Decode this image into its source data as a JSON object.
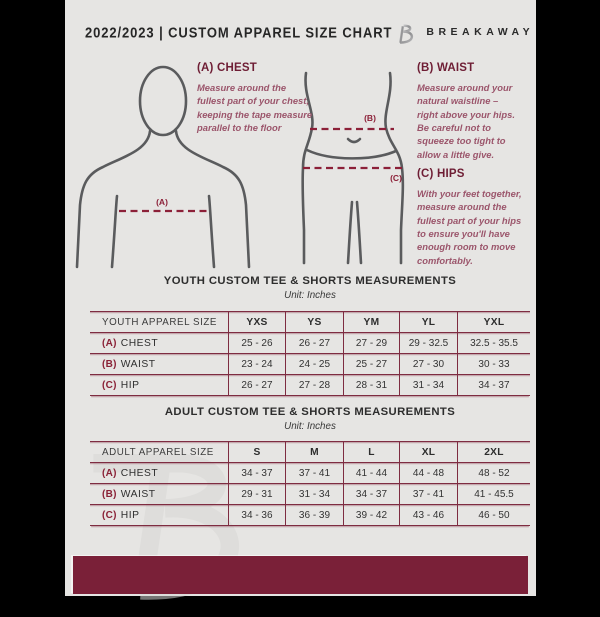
{
  "page": {
    "header": {
      "title": "2022/2023  |  CUSTOM APPAREL SIZE CHART",
      "brand": "BREAKAWAY",
      "logo": "breakaway-b-logo"
    },
    "measure_guide": {
      "chest_heading": "(A) CHEST",
      "chest_body": "Measure around the fullest part of your chest, keeping the tape measure parallel to the floor",
      "waist_heading": "(B) WAIST",
      "waist_body": "Measure around your natural waistline – right above your hips. Be careful not to squeeze too tight to allow a little give.",
      "hips_heading": "(C) HIPS",
      "hips_body": "With your feet together, measure around the fullest part of your hips to ensure you'll have enough room to move comfortably.",
      "marker_a": "(A)",
      "marker_b": "(B)",
      "marker_c": "(C)"
    },
    "youth_section": {
      "title": "YOUTH CUSTOM TEE & SHORTS MEASUREMENTS",
      "unit": "Unit: Inches",
      "table": {
        "header": [
          "YOUTH APPAREL SIZE",
          "YXS",
          "YS",
          "YM",
          "YL",
          "YXL"
        ],
        "rows": [
          {
            "prefix": "(A)",
            "label": "CHEST",
            "values": [
              "25 - 26",
              "26 - 27",
              "27 - 29",
              "29 - 32.5",
              "32.5 - 35.5"
            ]
          },
          {
            "prefix": "(B)",
            "label": "WAIST",
            "values": [
              "23 - 24",
              "24 - 25",
              "25 - 27",
              "27 - 30",
              "30 - 33"
            ]
          },
          {
            "prefix": "(C)",
            "label": "HIP",
            "values": [
              "26 - 27",
              "27 - 28",
              "28 - 31",
              "31 - 34",
              "34 - 37"
            ]
          }
        ]
      }
    },
    "adult_section": {
      "title": "ADULT CUSTOM TEE & SHORTS MEASUREMENTS",
      "unit": "Unit: Inches",
      "table": {
        "header": [
          "ADULT APPAREL SIZE",
          "S",
          "M",
          "L",
          "XL",
          "2XL"
        ],
        "rows": [
          {
            "prefix": "(A)",
            "label": "CHEST",
            "values": [
              "34 - 37",
              "37 - 41",
              "41 - 44",
              "44 - 48",
              "48 - 52"
            ]
          },
          {
            "prefix": "(B)",
            "label": "WAIST",
            "values": [
              "29 - 31",
              "31 - 34",
              "34 - 37",
              "37 - 41",
              "41 - 45.5"
            ]
          },
          {
            "prefix": "(C)",
            "label": "HIP",
            "values": [
              "34 - 36",
              "36 - 39",
              "39 - 42",
              "43 - 46",
              "46 - 50"
            ]
          }
        ]
      }
    },
    "colors": {
      "maroon": "#7a2038",
      "line": "#7e2c41",
      "page_bg": "#e6e5e3",
      "text_dark": "#2c2c2c",
      "body_text": "#9b556b",
      "figure_stroke": "#5a5b5d",
      "dash_line": "#8c2038"
    }
  }
}
